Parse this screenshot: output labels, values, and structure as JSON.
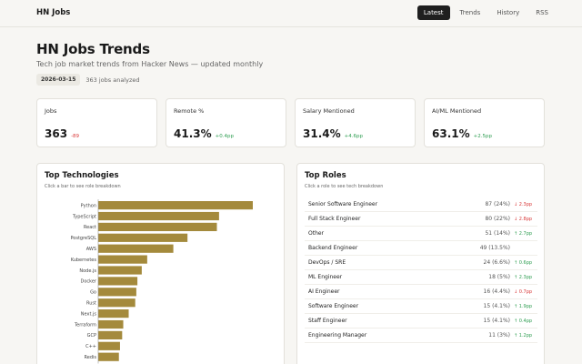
{
  "app": {
    "title": "HN Jobs"
  },
  "nav": [
    {
      "label": "Latest",
      "active": true
    },
    {
      "label": "Trends",
      "active": false
    },
    {
      "label": "History",
      "active": false
    },
    {
      "label": "RSS",
      "active": false
    }
  ],
  "page": {
    "title": "HN Jobs Trends",
    "subtitle": "Tech job market trends from Hacker News — updated monthly",
    "date": "2026-03-15",
    "jobs_analyzed": "363 jobs analyzed"
  },
  "stats": [
    {
      "label": "Jobs",
      "value": "363",
      "delta": "-89",
      "direction": "neg"
    },
    {
      "label": "Remote %",
      "value": "41.3%",
      "delta": "+0.4pp",
      "direction": "pos"
    },
    {
      "label": "Salary Mentioned",
      "value": "31.4%",
      "delta": "+4.6pp",
      "direction": "pos"
    },
    {
      "label": "AI/ML Mentioned",
      "value": "63.1%",
      "delta": "+2.5pp",
      "direction": "pos"
    }
  ],
  "tech_panel": {
    "title": "Top Technologies",
    "subtitle": "Click a bar to see role breakdown"
  },
  "roles_panel": {
    "title": "Top Roles",
    "subtitle": "Click a role to see tech breakdown",
    "roles": [
      {
        "name": "Senior Software Engineer",
        "count": "87 (24%)",
        "delta": "↓ 2.3pp",
        "direction": "neg"
      },
      {
        "name": "Full Stack Engineer",
        "count": "80 (22%)",
        "delta": "↓ 2.8pp",
        "direction": "neg"
      },
      {
        "name": "Other",
        "count": "51 (14%)",
        "delta": "↑ 2.7pp",
        "direction": "pos"
      },
      {
        "name": "Backend Engineer",
        "count": "49 (13.5%)",
        "delta": "",
        "direction": ""
      },
      {
        "name": "DevOps / SRE",
        "count": "24 (6.6%)",
        "delta": "↑ 0.6pp",
        "direction": "pos"
      },
      {
        "name": "ML Engineer",
        "count": "18 (5%)",
        "delta": "↑ 2.3pp",
        "direction": "pos"
      },
      {
        "name": "AI Engineer",
        "count": "16 (4.4%)",
        "delta": "↓ 0.7pp",
        "direction": "neg"
      },
      {
        "name": "Software Engineer",
        "count": "15 (4.1%)",
        "delta": "↑ 1.9pp",
        "direction": "pos"
      },
      {
        "name": "Staff Engineer",
        "count": "15 (4.1%)",
        "delta": "↑ 0.4pp",
        "direction": "pos"
      },
      {
        "name": "Engineering Manager",
        "count": "11 (3%)",
        "delta": "↑ 1.2pp",
        "direction": "pos"
      }
    ]
  },
  "chart_data": {
    "type": "bar",
    "orientation": "horizontal",
    "categories": [
      "Python",
      "TypeScript",
      "React",
      "PostgreSQL",
      "AWS",
      "Kubernetes",
      "Node.js",
      "Docker",
      "Go",
      "Rust",
      "Next.js",
      "Terraform",
      "GCP",
      "C++",
      "Redis"
    ],
    "values": [
      142,
      111,
      109,
      82,
      69,
      45,
      40,
      36,
      35,
      34,
      28,
      23,
      22,
      20,
      19
    ],
    "bar_color": "#a48a3c",
    "title": "Top Technologies",
    "xlabel": "",
    "ylabel": ""
  }
}
